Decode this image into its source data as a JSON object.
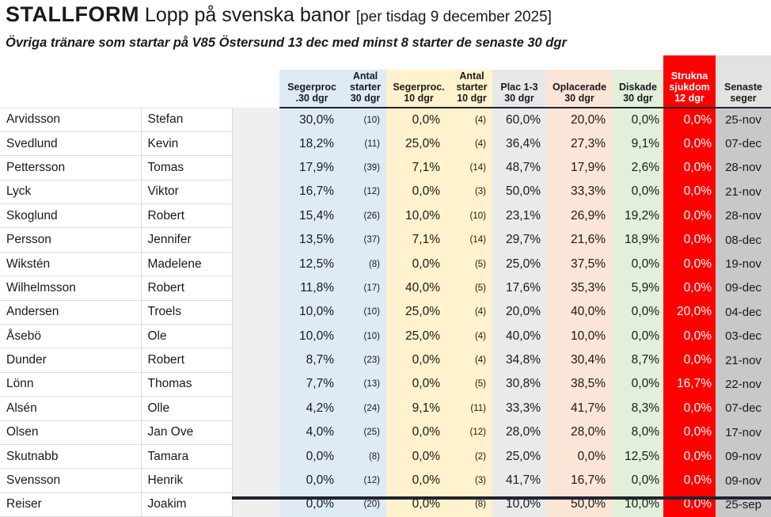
{
  "title": {
    "brand": "STALLFORM",
    "main": " Lopp på svenska banor ",
    "note": "[per tisdag 9 december 2025]"
  },
  "subtitle": "Övriga tränare som startar på V85 Östersund 13 dec med minst 8 starter de senaste 30 dgr",
  "headers": {
    "seg30": "Segerproc\n.30 dgr",
    "ant30": "Antal\nstarter\n30 dgr",
    "seg10": "Segerproc.\n10 dgr",
    "ant10": "Antal\nstarter\n10 dgr",
    "plac": "Plac 1-3\n30 dgr",
    "opl": "Oplacerade\n30 dgr",
    "disk": "Diskade\n30 dgr",
    "struk": "Strukna\nsjukdom\n12 dgr",
    "seger": "Senaste\nseger"
  },
  "rows": [
    {
      "last": "Arvidsson",
      "first": "Stefan",
      "seg30": "30,0%",
      "n30": "(10)",
      "seg10": "0,0%",
      "n10": "(4)",
      "plac": "60,0%",
      "opl": "20,0%",
      "disk": "0,0%",
      "struk": "0,0%",
      "seger": "25-nov"
    },
    {
      "last": "Svedlund",
      "first": "Kevin",
      "seg30": "18,2%",
      "n30": "(11)",
      "seg10": "25,0%",
      "n10": "(4)",
      "plac": "36,4%",
      "opl": "27,3%",
      "disk": "9,1%",
      "struk": "0,0%",
      "seger": "07-dec"
    },
    {
      "last": "Pettersson",
      "first": "Tomas",
      "seg30": "17,9%",
      "n30": "(39)",
      "seg10": "7,1%",
      "n10": "(14)",
      "plac": "48,7%",
      "opl": "17,9%",
      "disk": "2,6%",
      "struk": "0,0%",
      "seger": "28-nov"
    },
    {
      "last": "Lyck",
      "first": "Viktor",
      "seg30": "16,7%",
      "n30": "(12)",
      "seg10": "0,0%",
      "n10": "(3)",
      "plac": "50,0%",
      "opl": "33,3%",
      "disk": "0,0%",
      "struk": "0,0%",
      "seger": "21-nov"
    },
    {
      "last": "Skoglund",
      "first": "Robert",
      "seg30": "15,4%",
      "n30": "(26)",
      "seg10": "10,0%",
      "n10": "(10)",
      "plac": "23,1%",
      "opl": "26,9%",
      "disk": "19,2%",
      "struk": "0,0%",
      "seger": "28-nov"
    },
    {
      "last": "Persson",
      "first": "Jennifer",
      "seg30": "13,5%",
      "n30": "(37)",
      "seg10": "7,1%",
      "n10": "(14)",
      "plac": "29,7%",
      "opl": "21,6%",
      "disk": "18,9%",
      "struk": "0,0%",
      "seger": "08-dec"
    },
    {
      "last": "Wikstén",
      "first": "Madelene",
      "seg30": "12,5%",
      "n30": "(8)",
      "seg10": "0,0%",
      "n10": "(5)",
      "plac": "25,0%",
      "opl": "37,5%",
      "disk": "0,0%",
      "struk": "0,0%",
      "seger": "19-nov"
    },
    {
      "last": "Wilhelmsson",
      "first": "Robert",
      "seg30": "11,8%",
      "n30": "(17)",
      "seg10": "40,0%",
      "n10": "(5)",
      "plac": "17,6%",
      "opl": "35,3%",
      "disk": "5,9%",
      "struk": "0,0%",
      "seger": "09-dec"
    },
    {
      "last": "Andersen",
      "first": "Troels",
      "seg30": "10,0%",
      "n30": "(10)",
      "seg10": "25,0%",
      "n10": "(4)",
      "plac": "20,0%",
      "opl": "40,0%",
      "disk": "0,0%",
      "struk": "20,0%",
      "seger": "04-dec"
    },
    {
      "last": "Åsebö",
      "first": "Ole",
      "seg30": "10,0%",
      "n30": "(10)",
      "seg10": "25,0%",
      "n10": "(4)",
      "plac": "40,0%",
      "opl": "10,0%",
      "disk": "0,0%",
      "struk": "0,0%",
      "seger": "03-dec"
    },
    {
      "last": "Dunder",
      "first": "Robert",
      "seg30": "8,7%",
      "n30": "(23)",
      "seg10": "0,0%",
      "n10": "(4)",
      "plac": "34,8%",
      "opl": "30,4%",
      "disk": "8,7%",
      "struk": "0,0%",
      "seger": "21-nov"
    },
    {
      "last": "Lönn",
      "first": "Thomas",
      "seg30": "7,7%",
      "n30": "(13)",
      "seg10": "0,0%",
      "n10": "(5)",
      "plac": "30,8%",
      "opl": "38,5%",
      "disk": "0,0%",
      "struk": "16,7%",
      "seger": "22-nov"
    },
    {
      "last": "Alsén",
      "first": "Olle",
      "seg30": "4,2%",
      "n30": "(24)",
      "seg10": "9,1%",
      "n10": "(11)",
      "plac": "33,3%",
      "opl": "41,7%",
      "disk": "8,3%",
      "struk": "0,0%",
      "seger": "07-dec"
    },
    {
      "last": "Olsen",
      "first": "Jan Ove",
      "seg30": "4,0%",
      "n30": "(25)",
      "seg10": "0,0%",
      "n10": "(12)",
      "plac": "28,0%",
      "opl": "28,0%",
      "disk": "8,0%",
      "struk": "0,0%",
      "seger": "17-nov"
    },
    {
      "last": "Skutnabb",
      "first": "Tamara",
      "seg30": "0,0%",
      "n30": "(8)",
      "seg10": "0,0%",
      "n10": "(2)",
      "plac": "25,0%",
      "opl": "0,0%",
      "disk": "12,5%",
      "struk": "0,0%",
      "seger": "09-nov"
    },
    {
      "last": "Svensson",
      "first": "Henrik",
      "seg30": "0,0%",
      "n30": "(12)",
      "seg10": "0,0%",
      "n10": "(3)",
      "plac": "41,7%",
      "opl": "16,7%",
      "disk": "0,0%",
      "struk": "0,0%",
      "seger": "09-nov"
    },
    {
      "last": "Reiser",
      "first": "Joakim",
      "seg30": "0,0%",
      "n30": "(20)",
      "seg10": "0,0%",
      "n10": "(8)",
      "plac": "10,0%",
      "opl": "50,0%",
      "disk": "10,0%",
      "struk": "0,0%",
      "seger": "25-sep"
    }
  ],
  "colors": {
    "blue_30dgr": "#DEEBF7",
    "yellow_10dgr": "#FFF2CC",
    "grayblue_plac": "#E9EAEC",
    "pink_oplacerade": "#FBE5D6",
    "green_diskade": "#E2EFDA",
    "red_strukna": "#FE0000",
    "gray_senaste": "#C7C8CA",
    "spacer_gray": "#F0EFEE",
    "bottom_strip": "#20242E"
  }
}
